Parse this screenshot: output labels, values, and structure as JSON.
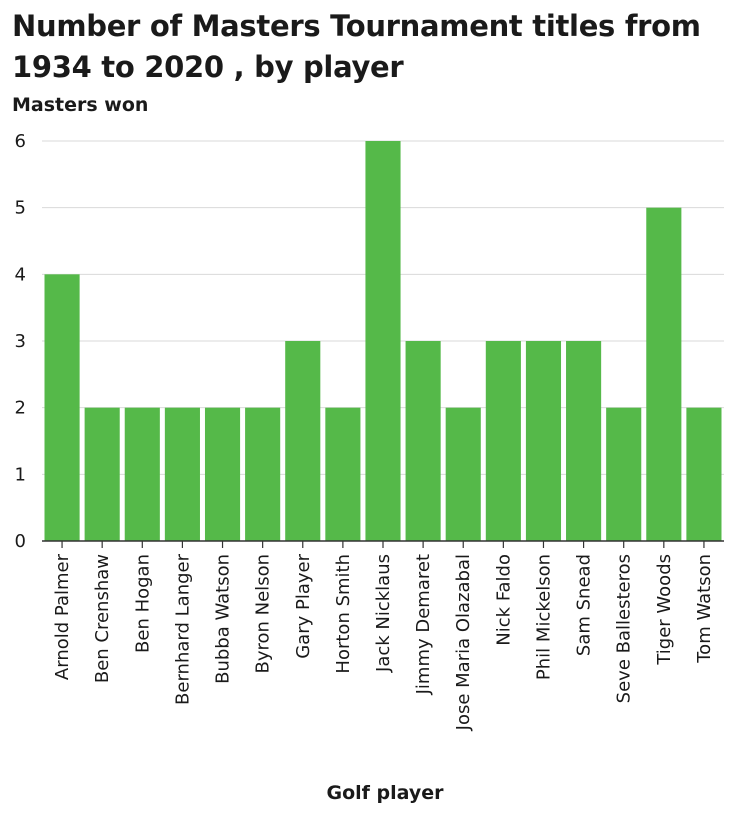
{
  "chart_data": {
    "type": "bar",
    "title": "Number of Masters Tournament titles from 1934 to 2020 , by player",
    "xlabel": "Golf player",
    "ylabel": "Masters won",
    "categories": [
      "Arnold Palmer",
      "Ben Crenshaw",
      "Ben Hogan",
      "Bernhard Langer",
      "Bubba Watson",
      "Byron Nelson",
      "Gary Player",
      "Horton Smith",
      "Jack Nicklaus",
      "Jimmy Demaret",
      "Jose Maria Olazabal",
      "Nick Faldo",
      "Phil Mickelson",
      "Sam Snead",
      "Seve Ballesteros",
      "Tiger Woods",
      "Tom Watson"
    ],
    "values": [
      4,
      2,
      2,
      2,
      2,
      2,
      3,
      2,
      6,
      3,
      2,
      3,
      3,
      3,
      2,
      5,
      2
    ],
    "ylim": [
      0,
      6
    ],
    "yticks": [
      0,
      1,
      2,
      3,
      4,
      5,
      6
    ],
    "grid": true,
    "colors": {
      "bar": "#55b949",
      "grid": "#d9d9d9",
      "axis": "#333333"
    }
  }
}
